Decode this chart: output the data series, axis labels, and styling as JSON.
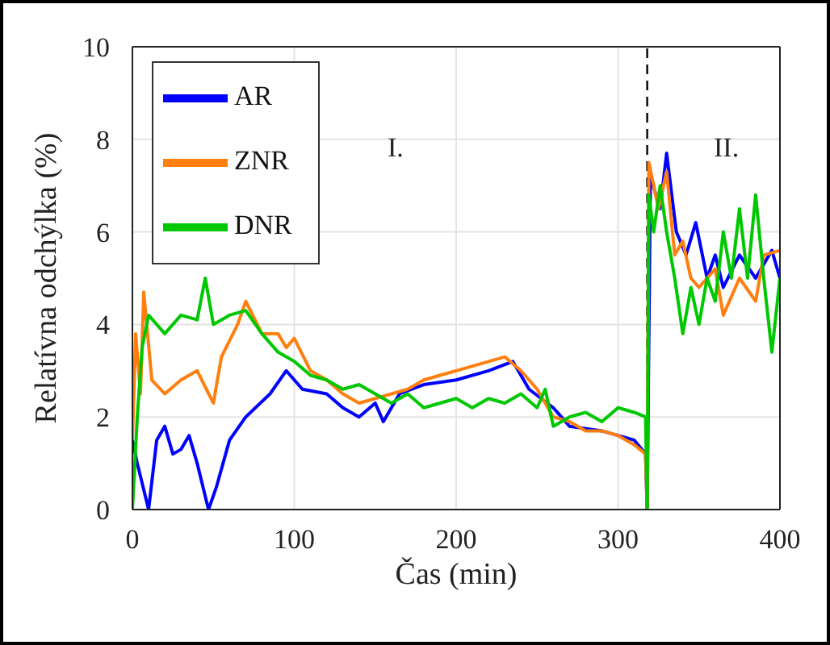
{
  "chart_data": {
    "type": "line",
    "xlabel": "Čas (min)",
    "ylabel": "Relatívna odchýlka (%)",
    "xlim": [
      0,
      400
    ],
    "xticks": [
      0,
      100,
      200,
      300,
      400
    ],
    "ylim": [
      0,
      10
    ],
    "yticks": [
      0,
      2,
      4,
      6,
      8,
      10
    ],
    "grid": true,
    "legend": "top left",
    "marker": "none",
    "line_style": "solid",
    "annotations": [
      "I.",
      "II."
    ],
    "ref_lines": [
      {
        "axis": "x",
        "value": 318,
        "color": "#000000",
        "line_style": "dashed"
      }
    ],
    "series": [
      {
        "name": "AR",
        "color": "#0000ff",
        "x": [
          0,
          3,
          10,
          15,
          20,
          25,
          30,
          35,
          40,
          47,
          52,
          60,
          70,
          85,
          95,
          105,
          120,
          130,
          140,
          150,
          155,
          165,
          180,
          200,
          220,
          235,
          245,
          260,
          270,
          290,
          310,
          317,
          318,
          320,
          326,
          330,
          336,
          342,
          348,
          355,
          360,
          365,
          375,
          385,
          395,
          400
        ],
        "values": [
          1.5,
          1.0,
          0,
          1.5,
          1.8,
          1.2,
          1.3,
          1.6,
          1.0,
          0,
          0.5,
          1.5,
          2.0,
          2.5,
          3.0,
          2.6,
          2.5,
          2.2,
          2.0,
          2.3,
          1.9,
          2.5,
          2.7,
          2.8,
          3.0,
          3.2,
          2.6,
          2.2,
          1.8,
          1.7,
          1.5,
          1.2,
          0,
          7.2,
          6.5,
          7.7,
          6.0,
          5.5,
          6.2,
          5.0,
          5.5,
          4.8,
          5.5,
          5.0,
          5.6,
          5.0
        ]
      },
      {
        "name": "ZNR",
        "color": "#ff7f0e",
        "x": [
          0,
          2,
          5,
          7,
          12,
          20,
          30,
          40,
          50,
          55,
          65,
          70,
          80,
          90,
          95,
          100,
          110,
          120,
          130,
          140,
          150,
          160,
          170,
          180,
          190,
          200,
          210,
          220,
          230,
          240,
          245,
          250,
          260,
          270,
          280,
          290,
          300,
          310,
          317,
          318,
          319,
          325,
          330,
          335,
          340,
          345,
          350,
          360,
          365,
          375,
          385,
          390,
          400
        ],
        "values": [
          1.5,
          3.8,
          2.5,
          4.7,
          2.8,
          2.5,
          2.8,
          3.0,
          2.3,
          3.3,
          4.0,
          4.5,
          3.8,
          3.8,
          3.5,
          3.7,
          3.0,
          2.8,
          2.5,
          2.3,
          2.4,
          2.5,
          2.6,
          2.8,
          2.9,
          3.0,
          3.1,
          3.2,
          3.3,
          3.0,
          2.8,
          2.6,
          2.0,
          1.9,
          1.7,
          1.7,
          1.6,
          1.4,
          1.2,
          0,
          7.5,
          6.5,
          7.3,
          5.5,
          5.8,
          5.0,
          4.8,
          5.2,
          4.2,
          5.0,
          4.5,
          5.5,
          5.6
        ]
      },
      {
        "name": "DNR",
        "color": "#00c800",
        "x": [
          0,
          3,
          6,
          10,
          20,
          30,
          40,
          45,
          50,
          60,
          70,
          80,
          90,
          100,
          110,
          120,
          130,
          140,
          150,
          160,
          170,
          180,
          190,
          200,
          210,
          220,
          230,
          240,
          250,
          255,
          260,
          270,
          280,
          290,
          300,
          310,
          317,
          318,
          319,
          322,
          326,
          330,
          335,
          340,
          345,
          350,
          355,
          360,
          365,
          370,
          375,
          380,
          385,
          390,
          395,
          400
        ],
        "values": [
          0,
          2.0,
          3.5,
          4.2,
          3.8,
          4.2,
          4.1,
          5.0,
          4.0,
          4.2,
          4.3,
          3.8,
          3.4,
          3.2,
          2.9,
          2.8,
          2.6,
          2.7,
          2.5,
          2.3,
          2.5,
          2.2,
          2.3,
          2.4,
          2.2,
          2.4,
          2.3,
          2.5,
          2.2,
          2.6,
          1.8,
          2.0,
          2.1,
          1.9,
          2.2,
          2.1,
          2.0,
          0,
          6.8,
          6.0,
          7.0,
          6.0,
          5.0,
          3.8,
          4.8,
          4.0,
          5.0,
          4.5,
          6.0,
          5.0,
          6.5,
          5.0,
          6.8,
          5.0,
          3.4,
          5.0
        ]
      }
    ]
  }
}
